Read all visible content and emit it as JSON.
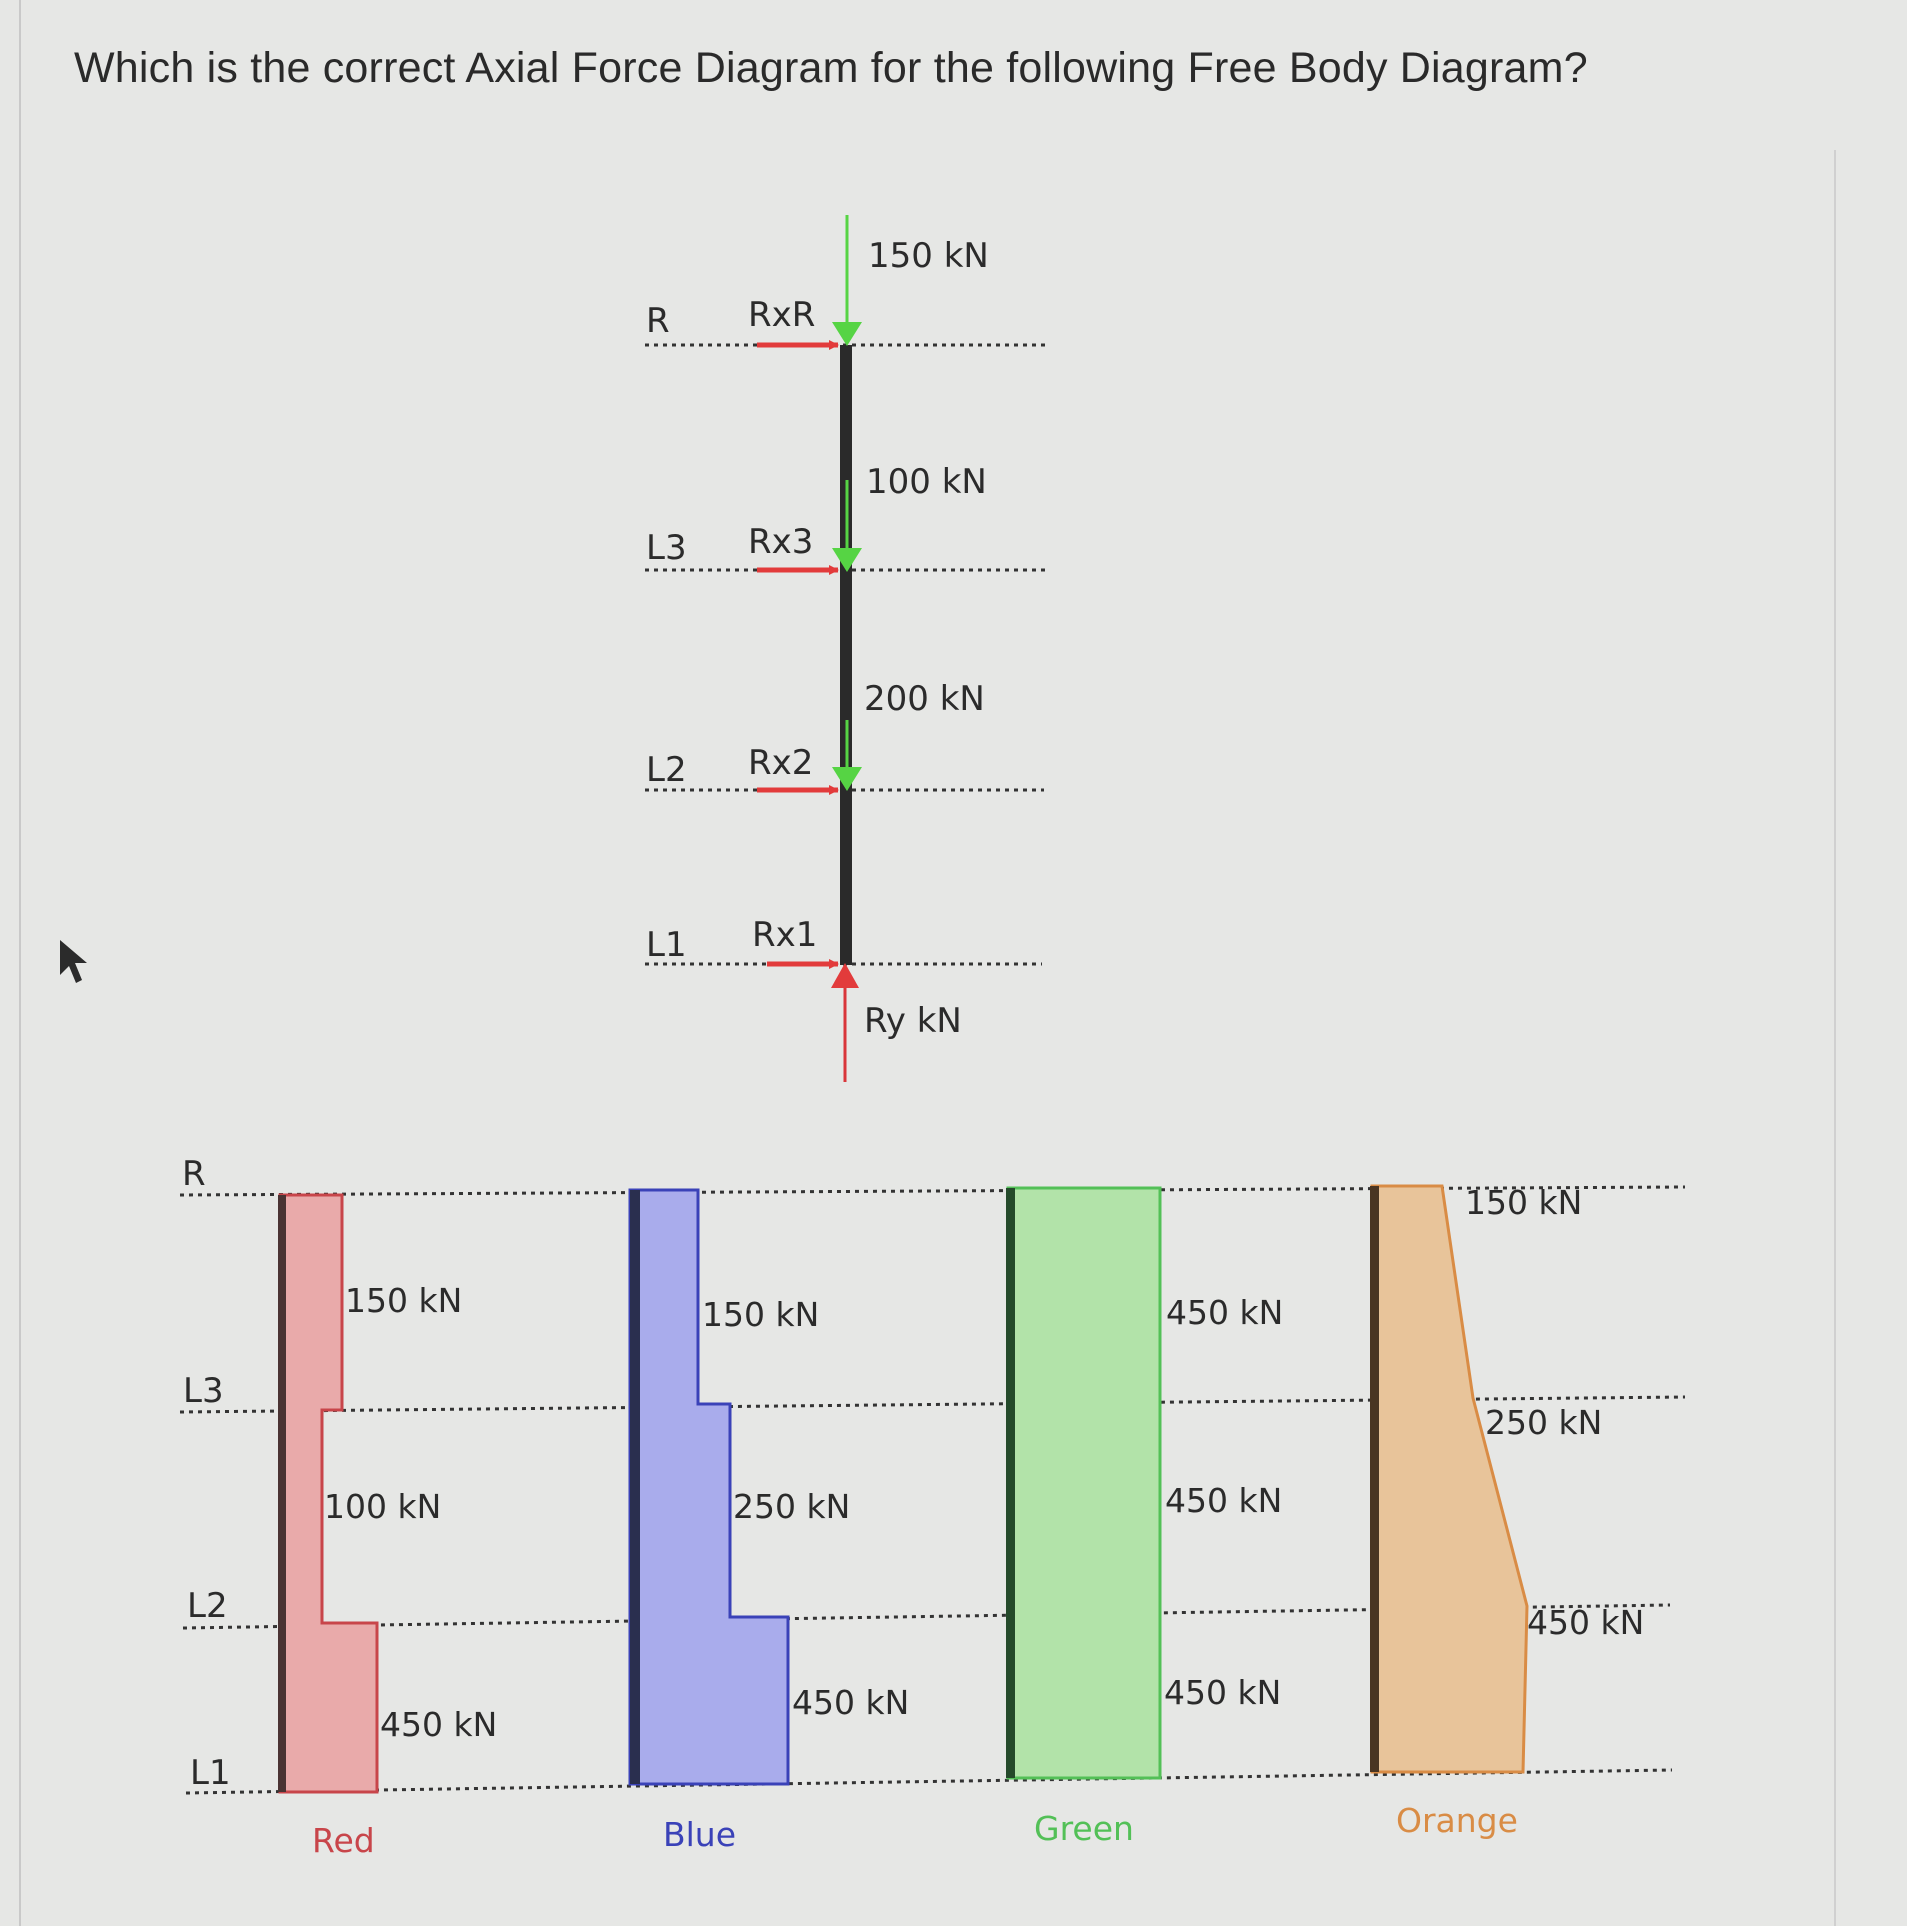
{
  "question": "Which is the correct Axial Force Diagram for the following Free Body Diagram?",
  "free_body_diagram": {
    "levels": [
      "R",
      "L3",
      "L2",
      "L1"
    ],
    "reaction_labels": [
      "RxR",
      "Rx3",
      "Rx2",
      "Rx1"
    ],
    "applied_loads": [
      "150 kN",
      "100 kN",
      "200 kN"
    ],
    "base_reaction": "Ry kN"
  },
  "options": {
    "level_labels": [
      "R",
      "L3",
      "L2",
      "L1"
    ],
    "red": {
      "name": "Red",
      "color": "#c8454a",
      "fill": "#e9aaaa",
      "values_kN": [
        150,
        100,
        450
      ],
      "labels": [
        "150 kN",
        "100 kN",
        "450 kN"
      ]
    },
    "blue": {
      "name": "Blue",
      "color": "#3a42b8",
      "fill": "#a9acec",
      "values_kN": [
        150,
        250,
        450
      ],
      "labels": [
        "150 kN",
        "250 kN",
        "450 kN"
      ]
    },
    "green": {
      "name": "Green",
      "color": "#53c057",
      "fill": "#b2e3a9",
      "values_kN": [
        450,
        450,
        450
      ],
      "labels": [
        "450 kN",
        "450 kN",
        "450 kN"
      ]
    },
    "orange": {
      "name": "Orange",
      "color": "#d98c45",
      "fill": "#e8c49a",
      "values_kN": [
        150,
        250,
        450
      ],
      "labels": [
        "150 kN",
        "250 kN",
        "450 kN"
      ]
    }
  }
}
